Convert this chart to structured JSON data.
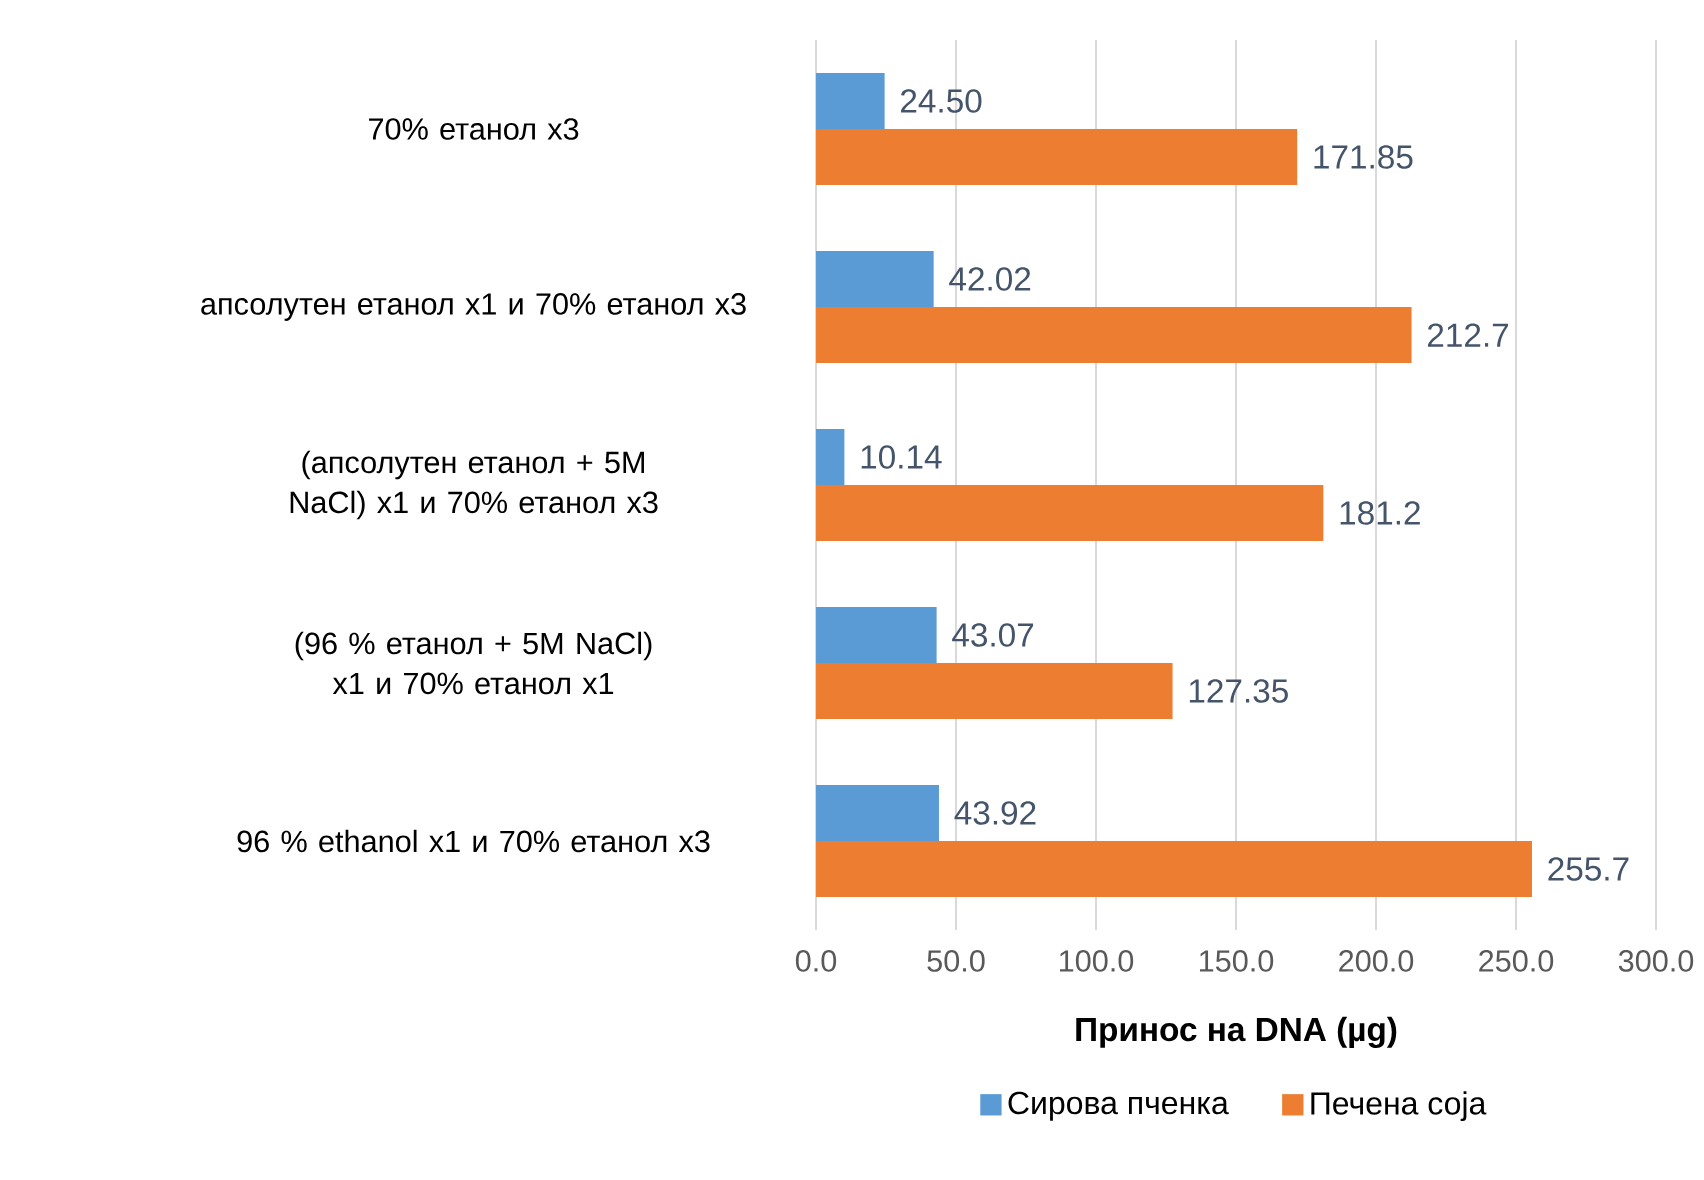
{
  "chart_data": {
    "type": "bar",
    "orientation": "horizontal",
    "xlabel": "Принос на DNA (µg)",
    "categories": [
      "70% етанол x3",
      "апсолутен етанол x1 и 70% етанол x3",
      "(апсолутен етанол + 5M NaCl) x1 и 70% етанол x3",
      "(96 % етанол + 5M NaCl) x1 и 70% етанол x1",
      "96 % ethanol x1 и 70% етанол x3"
    ],
    "series": [
      {
        "name": "Сирова пченка",
        "color": "#5b9bd5",
        "values": [
          24.5,
          42.02,
          10.14,
          43.07,
          43.92
        ],
        "value_labels": [
          "24.50",
          "42.02",
          "10.14",
          "43.07",
          "43.92"
        ]
      },
      {
        "name": "Печена соја",
        "color": "#ed7d31",
        "values": [
          171.85,
          212.7,
          181.2,
          127.35,
          255.7
        ],
        "value_labels": [
          "171.85",
          "212.7",
          "181.2",
          "127.35",
          "255.7"
        ]
      }
    ],
    "xlim": [
      0,
      300
    ],
    "xticks": [
      {
        "value": 0,
        "label": "0.0"
      },
      {
        "value": 50,
        "label": "50.0"
      },
      {
        "value": 100,
        "label": "100.0"
      },
      {
        "value": 150,
        "label": "150.0"
      },
      {
        "value": 200,
        "label": "200.0"
      },
      {
        "value": 250,
        "label": "250.0"
      },
      {
        "value": 300,
        "label": "300.0"
      }
    ],
    "grid": "x",
    "legend": "bottom"
  }
}
